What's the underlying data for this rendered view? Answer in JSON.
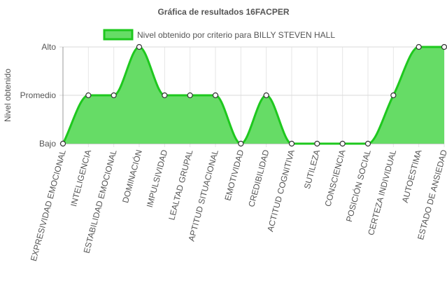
{
  "chart_data": {
    "type": "area",
    "title": "Gráfica de resultados 16FACPER",
    "xlabel": "",
    "ylabel": "Nivel obtenido",
    "y_ticks": [
      "Bajo",
      "Promedio",
      "Alto"
    ],
    "ylim": [
      0,
      2
    ],
    "legend_position": "top",
    "grid": true,
    "categories": [
      "EXPRESIVIDAD EMOCIONAL",
      "INTELIGENCIA",
      "ESTABILIDAD EMOCIONAL",
      "DOMINACIÓN",
      "IMPULSIVIDAD",
      "LEALTAD GRUPAL",
      "APTITUD SITUACIONAL",
      "EMOTIVIDAD",
      "CREDIBILIDAD",
      "ACTITUD COGNITIVA",
      "SUTILEZA",
      "CONSCIENCIA",
      "POSICIÓN SOCIAL",
      "CERTEZA INDIVIDUAL",
      "AUTOESTIMA",
      "ESTADO DE ANSIEDAD"
    ],
    "series": [
      {
        "name": "Nivel obtenido por criterio para BILLY STEVEN HALL",
        "values": [
          0,
          1,
          1,
          2,
          1,
          1,
          1,
          0,
          1,
          0,
          0,
          0,
          0,
          1,
          2,
          2
        ],
        "color": "#1ec81e",
        "fill": "#66dc66"
      }
    ]
  }
}
